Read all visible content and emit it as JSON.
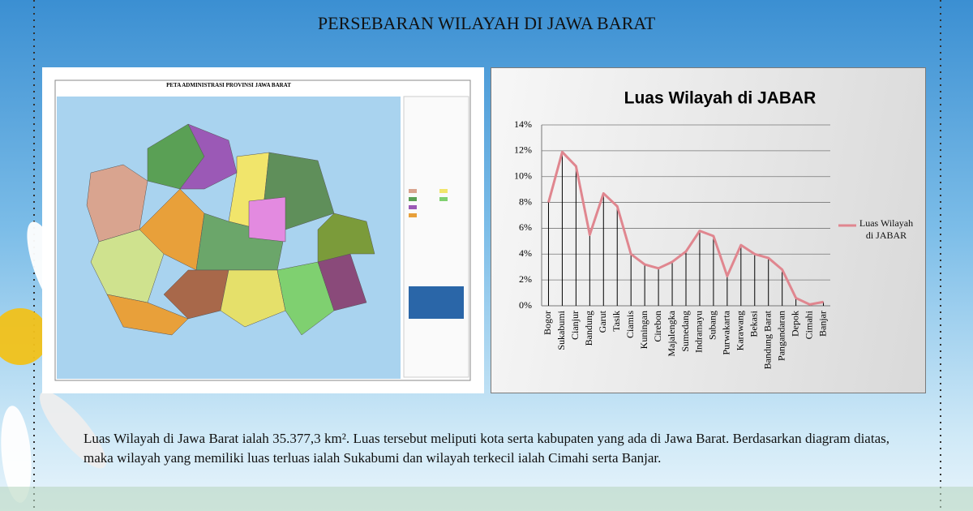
{
  "header": {
    "title": "PERSEBARAN WILAYAH DI JAWA BARAT"
  },
  "map": {
    "title": "PETA ADMINISTRASI PROVINSI JAWA BARAT"
  },
  "chart_data": {
    "type": "line",
    "title": "Luas Wilayah di JABAR",
    "categories": [
      "Bogor",
      "Sukabumi",
      "Cianjur",
      "Bandung",
      "Garut",
      "Tasik",
      "Ciamis",
      "Kuningan",
      "Cirebon",
      "Majalengka",
      "Sumedang",
      "Indramayu",
      "Subang",
      "Purwakarta",
      "Karawang",
      "Bekasi",
      "Bandung Barat",
      "Pangandaran",
      "Depok",
      "Cimahi",
      "Banjar"
    ],
    "series": [
      {
        "name": "Luas Wilayah di JABAR",
        "color": "#e0868f",
        "values": [
          8.0,
          11.9,
          10.8,
          5.5,
          8.7,
          7.7,
          4.0,
          3.2,
          2.9,
          3.4,
          4.2,
          5.8,
          5.4,
          2.3,
          4.7,
          4.0,
          3.7,
          2.8,
          0.6,
          0.1,
          0.3
        ]
      }
    ],
    "ylim": [
      0,
      14
    ],
    "yticks": [
      {
        "value": 0,
        "label": "0%"
      },
      {
        "value": 2,
        "label": "2%"
      },
      {
        "value": 4,
        "label": "4%"
      },
      {
        "value": 6,
        "label": "6%"
      },
      {
        "value": 8,
        "label": "8%"
      },
      {
        "value": 10,
        "label": "10%"
      },
      {
        "value": 12,
        "label": "12%"
      },
      {
        "value": 14,
        "label": "14%"
      }
    ],
    "grid": true,
    "drop_lines": true,
    "legend": "right"
  },
  "body": {
    "text": "Luas Wilayah di Jawa Barat ialah 35.377,3 km². Luas tersebut meliputi kota serta kabupaten yang ada di Jawa Barat. Berdasarkan diagram diatas, maka wilayah yang memiliki luas terluas ialah Sukabumi dan wilayah terkecil ialah Cimahi serta Banjar."
  }
}
